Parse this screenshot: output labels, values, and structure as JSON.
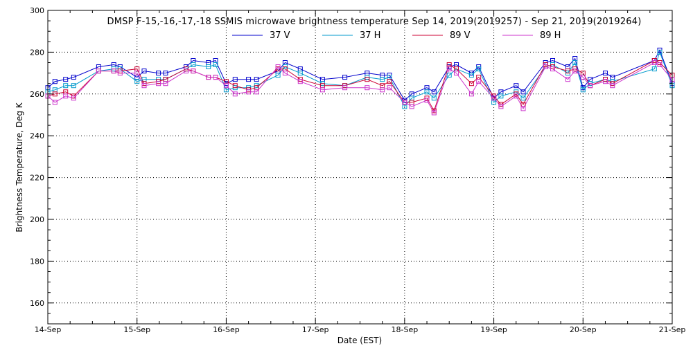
{
  "chart_data": {
    "type": "line",
    "title": "DMSP F-15,-16,-17,-18 SSMIS microwave brightness temperature Sep 14, 2019(2019257) - Sep 21, 2019(2019264)",
    "xlabel": "Date (EST)",
    "ylabel": "Brightness Temperature, Deg K",
    "ylim": [
      150,
      300
    ],
    "yticks": [
      160,
      180,
      200,
      220,
      240,
      260,
      280,
      300
    ],
    "xlim": [
      0,
      7
    ],
    "xtick_labels": [
      "14-Sep",
      "15-Sep",
      "16-Sep",
      "17-Sep",
      "18-Sep",
      "19-Sep",
      "20-Sep",
      "21-Sep"
    ],
    "grid": true,
    "legend_position": "top-center",
    "x": [
      0.0,
      0.08,
      0.2,
      0.29,
      0.57,
      0.74,
      0.81,
      1.0,
      1.08,
      1.24,
      1.32,
      1.55,
      1.63,
      1.8,
      1.88,
      2.0,
      2.1,
      2.25,
      2.34,
      2.58,
      2.66,
      2.83,
      3.08,
      3.33,
      3.58,
      3.75,
      3.83,
      4.0,
      4.08,
      4.25,
      4.33,
      4.5,
      4.58,
      4.75,
      4.83,
      5.0,
      5.08,
      5.25,
      5.33,
      5.58,
      5.66,
      5.83,
      5.91,
      6.0,
      6.08,
      6.25,
      6.33,
      6.8,
      6.86,
      7.0
    ],
    "series": [
      {
        "name": "37 V",
        "color": "#0000cc",
        "values": [
          263,
          266,
          267,
          268,
          273,
          274,
          273,
          268,
          271,
          270,
          270,
          273,
          276,
          275,
          276,
          265,
          267,
          267,
          267,
          271,
          275,
          272,
          267,
          268,
          270,
          269,
          269,
          257,
          260,
          263,
          261,
          273,
          274,
          270,
          273,
          258,
          261,
          264,
          261,
          275,
          276,
          273,
          277,
          263,
          267,
          270,
          268,
          276,
          281,
          265
        ]
      },
      {
        "name": "37 H",
        "color": "#0099cc",
        "values": [
          261,
          262,
          264,
          264,
          271,
          272,
          272,
          266,
          267,
          267,
          267,
          272,
          274,
          273,
          274,
          262,
          263,
          263,
          264,
          269,
          273,
          270,
          265,
          264,
          268,
          267,
          268,
          254,
          258,
          261,
          258,
          269,
          272,
          269,
          272,
          256,
          259,
          261,
          258,
          273,
          274,
          270,
          275,
          262,
          265,
          267,
          266,
          272,
          280,
          264
        ]
      },
      {
        "name": "89 V",
        "color": "#cc0033",
        "values": [
          259,
          260,
          261,
          259,
          271,
          271,
          271,
          272,
          265,
          266,
          267,
          272,
          271,
          268,
          268,
          266,
          264,
          262,
          263,
          272,
          272,
          267,
          264,
          264,
          267,
          264,
          266,
          256,
          256,
          258,
          252,
          274,
          272,
          265,
          268,
          259,
          255,
          260,
          255,
          274,
          273,
          271,
          272,
          270,
          264,
          267,
          265,
          276,
          275,
          269
        ]
      },
      {
        "name": "89 H",
        "color": "#cc33cc",
        "values": [
          259,
          256,
          259,
          258,
          271,
          271,
          270,
          270,
          264,
          265,
          265,
          271,
          271,
          268,
          268,
          264,
          260,
          261,
          261,
          273,
          270,
          266,
          262,
          263,
          263,
          262,
          263,
          256,
          254,
          257,
          251,
          272,
          270,
          260,
          266,
          258,
          254,
          259,
          253,
          273,
          272,
          267,
          271,
          268,
          264,
          266,
          264,
          275,
          274,
          267
        ]
      }
    ]
  }
}
